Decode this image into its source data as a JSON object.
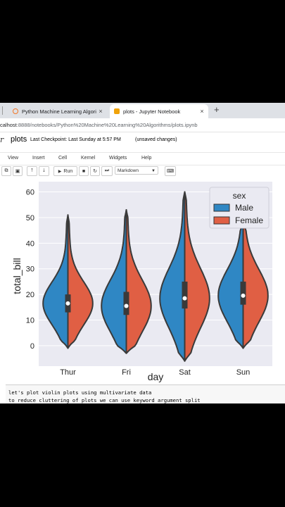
{
  "browser": {
    "tabs": [
      {
        "label": "Python Machine Learning Algori",
        "close": "×"
      },
      {
        "label": "plots - Jupyter Notebook",
        "close": "×"
      }
    ],
    "new_tab": "+",
    "address_host": "calhost",
    "address_path": ":8888/notebooks/Python%20Machine%20Learning%20Algorithms/plots.ipynb"
  },
  "notebook": {
    "logo": "r",
    "title": "plots",
    "checkpoint": "Last Checkpoint: Last Sunday at 5:57 PM",
    "unsaved": "(unsaved changes)"
  },
  "menu": [
    "View",
    "Insert",
    "Cell",
    "Kernel",
    "Widgets",
    "Help"
  ],
  "toolbar": {
    "run_label": "Run",
    "cell_type": "Markdown"
  },
  "chart_data": {
    "type": "violin",
    "xlabel": "day",
    "ylabel": "total_bill",
    "categories": [
      "Thur",
      "Fri",
      "Sat",
      "Sun"
    ],
    "yticks": [
      0,
      10,
      20,
      30,
      40,
      50,
      60
    ],
    "ylim": [
      -8,
      64
    ],
    "legend": {
      "title": "sex",
      "placement": "top-right",
      "entries": [
        "Male",
        "Female"
      ]
    },
    "colors": {
      "Male": "#2f87c4",
      "Female": "#e05f44"
    },
    "series": [
      {
        "name": "Male",
        "min": [
          -1,
          -3,
          -6,
          -1
        ],
        "max": [
          51,
          53,
          60,
          48
        ],
        "median": [
          16.5,
          15.5,
          18.5,
          19.5
        ],
        "q1": [
          13,
          12,
          14.5,
          16
        ],
        "q3": [
          20,
          21,
          25,
          25
        ]
      },
      {
        "name": "Female",
        "min": [
          -1,
          -3,
          -6,
          -1
        ],
        "max": [
          51,
          53,
          60,
          48
        ],
        "median": [
          16.5,
          15.5,
          18.5,
          19.5
        ],
        "q1": [
          13,
          12,
          14.5,
          16
        ],
        "q3": [
          20,
          21,
          25,
          25
        ]
      }
    ]
  },
  "cell_text": [
    "let's plot violin plots using multivariate data",
    "to reduce cluttering of plots we can use keyword argument split"
  ]
}
